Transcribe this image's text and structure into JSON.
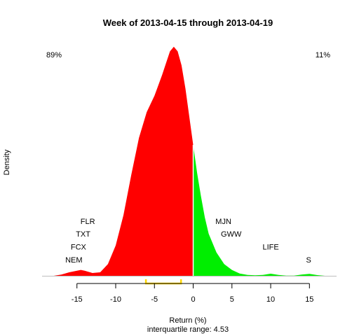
{
  "chart_data": {
    "type": "area",
    "title": "Week of 2013-04-15 through 2013-04-19",
    "xlabel": "Return (%)",
    "ylabel": "Density",
    "subtitle": "interquartile range: 4.53",
    "xlim": [
      -19.5,
      18.5
    ],
    "ylim": [
      0,
      0.1
    ],
    "x_ticks": [
      -15,
      -10,
      -5,
      0,
      5,
      10,
      15
    ],
    "x_tick_labels": [
      "-15",
      "-10",
      "-5",
      "0",
      "5",
      "10",
      "15"
    ],
    "split_at": 0,
    "negative_share": "89%",
    "positive_share": "11%",
    "colors": {
      "negative": "#ff0000",
      "positive": "#00ee00",
      "baseline": "#bebebe",
      "iqr_bracket": "#ffd700",
      "negative_text": "#ff0000",
      "positive_text": "#008b00"
    },
    "density": {
      "x": [
        -18,
        -17,
        -16,
        -15,
        -14.5,
        -14,
        -13,
        -12,
        -11,
        -10,
        -9,
        -8,
        -7,
        -6,
        -5,
        -4,
        -3.5,
        -3,
        -2.5,
        -2,
        -1.5,
        -1,
        -0.5,
        0,
        0.5,
        1,
        1.5,
        2,
        3,
        4,
        5,
        6,
        7,
        8,
        9,
        10,
        11,
        12,
        13,
        14,
        15,
        16,
        17
      ],
      "y": [
        0,
        0.0005,
        0.0015,
        0.0022,
        0.0025,
        0.0022,
        0.0012,
        0.0015,
        0.005,
        0.013,
        0.026,
        0.043,
        0.059,
        0.07,
        0.077,
        0.086,
        0.091,
        0.096,
        0.098,
        0.096,
        0.09,
        0.08,
        0.068,
        0.056,
        0.044,
        0.034,
        0.025,
        0.018,
        0.01,
        0.005,
        0.0025,
        0.001,
        0.0004,
        0.0002,
        0.0004,
        0.0009,
        0.0004,
        0.0001,
        0.0001,
        0.0005,
        0.0008,
        0.0003,
        0
      ]
    },
    "iqr": [
      -6.1,
      -1.57
    ],
    "stock_labels": [
      {
        "text": "FLR",
        "x": -13.6,
        "y": 0.0222
      },
      {
        "text": "TXT",
        "x": -14.2,
        "y": 0.0167
      },
      {
        "text": "FCX",
        "x": -14.8,
        "y": 0.0112
      },
      {
        "text": "NEM",
        "x": -15.4,
        "y": 0.0057
      },
      {
        "text": "MJN",
        "x": 3.9,
        "y": 0.0222
      },
      {
        "text": "GWW",
        "x": 4.9,
        "y": 0.0167
      },
      {
        "text": "LIFE",
        "x": 10.0,
        "y": 0.0112
      },
      {
        "text": "S",
        "x": 14.9,
        "y": 0.0057
      }
    ]
  }
}
